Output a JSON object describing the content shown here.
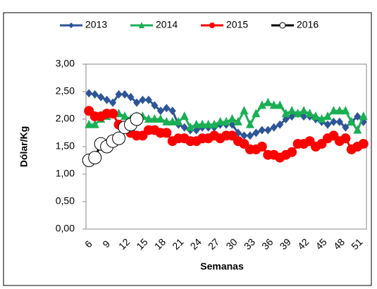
{
  "chart_data": {
    "type": "line",
    "y_label": "Dólar/Kg",
    "x_label": "Semanas",
    "categories": [
      6,
      null,
      null,
      9,
      null,
      null,
      12,
      null,
      null,
      15,
      null,
      null,
      18,
      null,
      null,
      21,
      null,
      null,
      24,
      null,
      null,
      27,
      null,
      null,
      30,
      null,
      null,
      33,
      null,
      null,
      36,
      null,
      null,
      39,
      null,
      null,
      42,
      null,
      null,
      45,
      null,
      null,
      48,
      null,
      null,
      51,
      null
    ],
    "series": [
      {
        "name": "2013",
        "color": "#2E5597",
        "marker": "diamond",
        "values": [
          2.47,
          2.45,
          2.4,
          2.35,
          2.3,
          2.45,
          2.45,
          2.4,
          2.3,
          2.35,
          2.35,
          2.25,
          2.15,
          2.2,
          2.15,
          1.9,
          1.85,
          1.8,
          1.8,
          1.85,
          1.85,
          1.85,
          1.9,
          1.9,
          1.9,
          1.75,
          1.7,
          1.7,
          1.75,
          1.8,
          1.8,
          1.85,
          1.9,
          2.0,
          2.05,
          2.1,
          2.05,
          2.05,
          2.0,
          1.95,
          1.9,
          1.95,
          1.95,
          1.85,
          1.95,
          2.05,
          1.95
        ]
      },
      {
        "name": "2014",
        "color": "#1AAF54",
        "marker": "triangle",
        "values": [
          1.9,
          1.9,
          2.0,
          2.05,
          2.1,
          2.1,
          2.05,
          2.0,
          2.05,
          2.05,
          2.0,
          2.0,
          2.0,
          1.95,
          1.95,
          1.95,
          2.05,
          1.85,
          1.9,
          1.9,
          1.9,
          1.9,
          1.95,
          1.95,
          2.0,
          1.95,
          2.15,
          1.9,
          2.1,
          2.25,
          2.3,
          2.25,
          2.25,
          2.1,
          2.15,
          2.1,
          2.15,
          2.1,
          2.05,
          2.0,
          2.05,
          2.15,
          2.15,
          2.15,
          1.95,
          1.8,
          2.05
        ]
      },
      {
        "name": "2015",
        "color": "#FF0000",
        "marker": "circle",
        "values": [
          2.15,
          2.05,
          2.05,
          2.1,
          2.1,
          1.9,
          1.85,
          1.75,
          1.7,
          1.7,
          1.8,
          1.8,
          1.75,
          1.75,
          1.6,
          1.65,
          1.65,
          1.6,
          1.6,
          1.65,
          1.65,
          1.7,
          1.65,
          1.7,
          1.7,
          1.6,
          1.55,
          1.45,
          1.45,
          1.5,
          1.35,
          1.35,
          1.3,
          1.35,
          1.4,
          1.55,
          1.55,
          1.6,
          1.5,
          1.55,
          1.65,
          1.7,
          1.6,
          1.65,
          1.45,
          1.5,
          1.55
        ]
      },
      {
        "name": "2016",
        "color": "#000000",
        "marker": "open-circle",
        "values": [
          1.25,
          1.3,
          1.55,
          1.5,
          1.6,
          1.65,
          1.85,
          1.9,
          2.0,
          null,
          null,
          null,
          null,
          null,
          null,
          null,
          null,
          null,
          null,
          null,
          null,
          null,
          null,
          null,
          null,
          null,
          null,
          null,
          null,
          null,
          null,
          null,
          null,
          null,
          null,
          null,
          null,
          null,
          null,
          null,
          null,
          null,
          null,
          null,
          null,
          null,
          null
        ]
      }
    ],
    "ylim": [
      0,
      3
    ],
    "yticks": [
      {
        "value": 0,
        "label": "0,00"
      },
      {
        "value": 0.5,
        "label": "0,50"
      },
      {
        "value": 1,
        "label": "1,00"
      },
      {
        "value": 1.5,
        "label": "1,50"
      },
      {
        "value": 2,
        "label": "2,00"
      },
      {
        "value": 2.5,
        "label": "2,50"
      },
      {
        "value": 3,
        "label": "3,00"
      }
    ],
    "grid": false,
    "legend": "top"
  }
}
